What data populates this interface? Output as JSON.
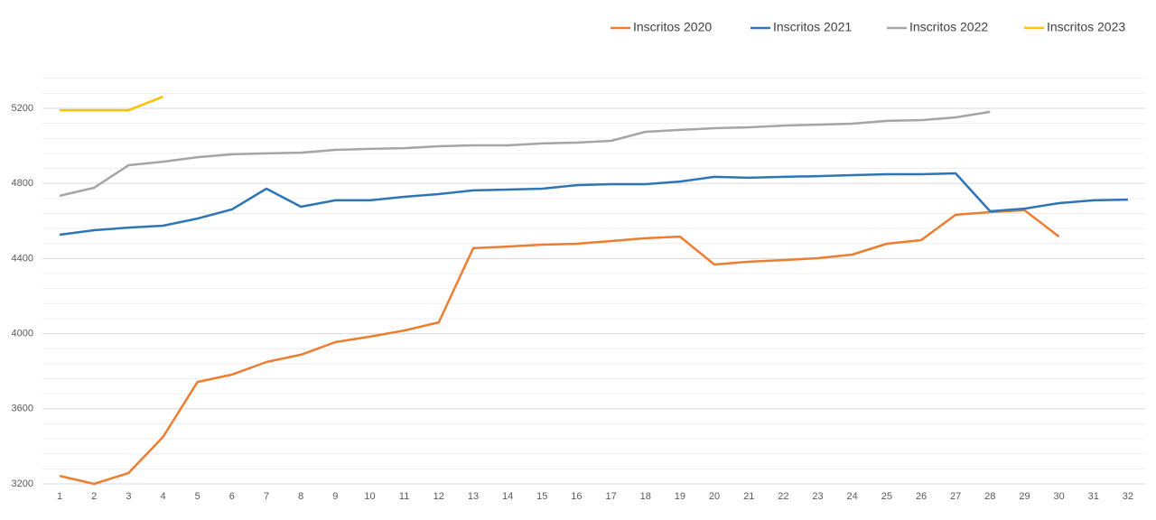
{
  "chart_data": {
    "type": "line",
    "categories": [
      "1",
      "2",
      "3",
      "4",
      "5",
      "6",
      "7",
      "8",
      "9",
      "10",
      "11",
      "12",
      "13",
      "14",
      "15",
      "16",
      "17",
      "18",
      "19",
      "20",
      "21",
      "22",
      "23",
      "24",
      "25",
      "26",
      "27",
      "28",
      "29",
      "30",
      "31",
      "32"
    ],
    "series": [
      {
        "name": "Inscritos 2020",
        "color": "#ed7d31",
        "values": [
          3243,
          3200,
          3258,
          3450,
          3743,
          3782,
          3849,
          3888,
          3955,
          3984,
          4017,
          4060,
          4455,
          4464,
          4474,
          4479,
          4493,
          4508,
          4517,
          4368,
          4383,
          4392,
          4402,
          4421,
          4479,
          4498,
          4633,
          4647,
          4657,
          4517,
          null,
          null
        ]
      },
      {
        "name": "Inscritos 2021",
        "color": "#2e75b6",
        "values": [
          4527,
          4551,
          4565,
          4575,
          4613,
          4662,
          4772,
          4676,
          4710,
          4710,
          4729,
          4743,
          4763,
          4767,
          4772,
          4791,
          4796,
          4796,
          4810,
          4835,
          4830,
          4835,
          4839,
          4844,
          4849,
          4849,
          4854,
          4652,
          4666,
          4695,
          4710,
          4714
        ]
      },
      {
        "name": "Inscritos 2022",
        "color": "#a5a5a5",
        "values": [
          4734,
          4777,
          4897,
          4916,
          4940,
          4955,
          4960,
          4964,
          4979,
          4984,
          4988,
          4998,
          5003,
          5003,
          5013,
          5017,
          5027,
          5075,
          5085,
          5094,
          5099,
          5108,
          5113,
          5118,
          5133,
          5137,
          5152,
          5181,
          null,
          null,
          null,
          null
        ]
      },
      {
        "name": "Inscritos 2023",
        "color": "#ffc000",
        "values": [
          5190,
          5190,
          5190,
          5262,
          null,
          null,
          null,
          null,
          null,
          null,
          null,
          null,
          null,
          null,
          null,
          null,
          null,
          null,
          null,
          null,
          null,
          null,
          null,
          null,
          null,
          null,
          null,
          null,
          null,
          null,
          null,
          null
        ]
      }
    ],
    "ylim": [
      3200,
      5360
    ],
    "yticks": [
      3200,
      3600,
      4000,
      4400,
      4800,
      5200
    ],
    "minor_yticks": [
      3280,
      3360,
      3440,
      3520,
      3680,
      3760,
      3840,
      3920,
      4080,
      4160,
      4240,
      4320,
      4480,
      4560,
      4640,
      4720,
      4880,
      4960,
      5040,
      5120,
      5280,
      5360
    ],
    "grid": true,
    "legend": "top-right"
  }
}
